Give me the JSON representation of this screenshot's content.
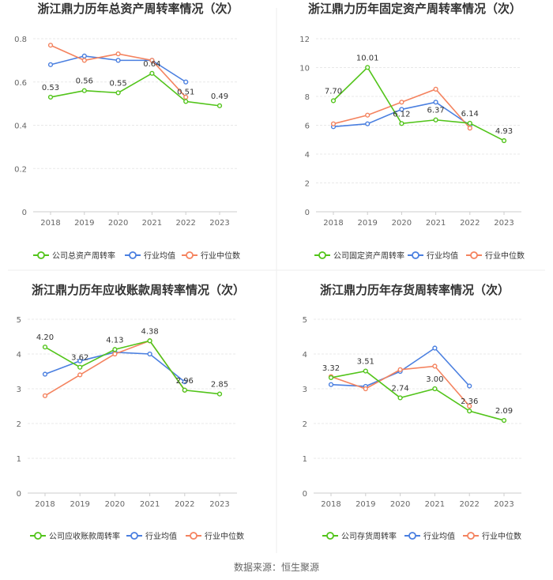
{
  "source": "数据来源：恒生聚源",
  "colors": {
    "company": "#52c41a",
    "avg": "#4a7fe0",
    "median": "#f4835f",
    "grid": "#e8e8e8",
    "axis": "#cccccc"
  },
  "chart_data": [
    {
      "type": "line",
      "title": "浙江鼎力历年总资产周转率情况（次）",
      "categories": [
        "2018",
        "2019",
        "2020",
        "2021",
        "2022",
        "2023"
      ],
      "ylim": [
        0,
        0.8
      ],
      "yticks": [
        "0",
        "0.2",
        "0.4",
        "0.6",
        "0.8"
      ],
      "series": [
        {
          "name": "公司总资产周转率",
          "values": [
            0.53,
            0.56,
            0.55,
            0.64,
            0.51,
            0.49
          ],
          "labels": [
            "0.53",
            "0.56",
            "0.55",
            "0.64",
            "0.51",
            "0.49"
          ]
        },
        {
          "name": "行业均值",
          "values": [
            0.68,
            0.72,
            0.7,
            0.7,
            0.6,
            null
          ]
        },
        {
          "name": "行业中位数",
          "values": [
            0.77,
            0.7,
            0.73,
            0.7,
            0.53,
            null
          ]
        }
      ]
    },
    {
      "type": "line",
      "title": "浙江鼎力历年固定资产周转率情况（次）",
      "categories": [
        "2018",
        "2019",
        "2020",
        "2021",
        "2022",
        "2023"
      ],
      "ylim": [
        0,
        12
      ],
      "yticks": [
        "0",
        "2",
        "4",
        "6",
        "8",
        "10",
        "12"
      ],
      "series": [
        {
          "name": "公司固定资产周转率",
          "values": [
            7.7,
            10.01,
            6.12,
            6.37,
            6.14,
            4.93
          ],
          "labels": [
            "7.70",
            "10.01",
            "6.12",
            "6.37",
            "6.14",
            "4.93"
          ]
        },
        {
          "name": "行业均值",
          "values": [
            5.9,
            6.1,
            7.1,
            7.6,
            6.0,
            null
          ]
        },
        {
          "name": "行业中位数",
          "values": [
            6.1,
            6.7,
            7.6,
            8.5,
            5.8,
            null
          ]
        }
      ]
    },
    {
      "type": "line",
      "title": "浙江鼎力历年应收账款周转率情况（次）",
      "categories": [
        "2018",
        "2019",
        "2020",
        "2021",
        "2022",
        "2023"
      ],
      "ylim": [
        0,
        5
      ],
      "yticks": [
        "0",
        "1",
        "2",
        "3",
        "4",
        "5"
      ],
      "series": [
        {
          "name": "公司应收账款周转率",
          "values": [
            4.2,
            3.62,
            4.13,
            4.38,
            2.96,
            2.85
          ],
          "labels": [
            "4.20",
            "3.62",
            "4.13",
            "4.38",
            "2.96",
            "2.85"
          ]
        },
        {
          "name": "行业均值",
          "values": [
            3.42,
            3.8,
            4.05,
            4.0,
            3.2,
            null
          ]
        },
        {
          "name": "行业中位数",
          "values": [
            2.8,
            3.4,
            4.0,
            4.38,
            2.96,
            null
          ]
        }
      ]
    },
    {
      "type": "line",
      "title": "浙江鼎力历年存货周转率情况（次）",
      "categories": [
        "2018",
        "2019",
        "2020",
        "2021",
        "2022",
        "2023"
      ],
      "ylim": [
        0,
        5
      ],
      "yticks": [
        "0",
        "1",
        "2",
        "3",
        "4",
        "5"
      ],
      "series": [
        {
          "name": "公司存货周转率",
          "values": [
            3.32,
            3.51,
            2.74,
            3.0,
            2.36,
            2.09
          ],
          "labels": [
            "3.32",
            "3.51",
            "2.74",
            "3.00",
            "2.36",
            "2.09"
          ]
        },
        {
          "name": "行业均值",
          "values": [
            3.12,
            3.07,
            3.5,
            4.17,
            3.08,
            null
          ]
        },
        {
          "name": "行业中位数",
          "values": [
            3.35,
            3.0,
            3.55,
            3.65,
            2.5,
            null
          ]
        }
      ]
    }
  ]
}
